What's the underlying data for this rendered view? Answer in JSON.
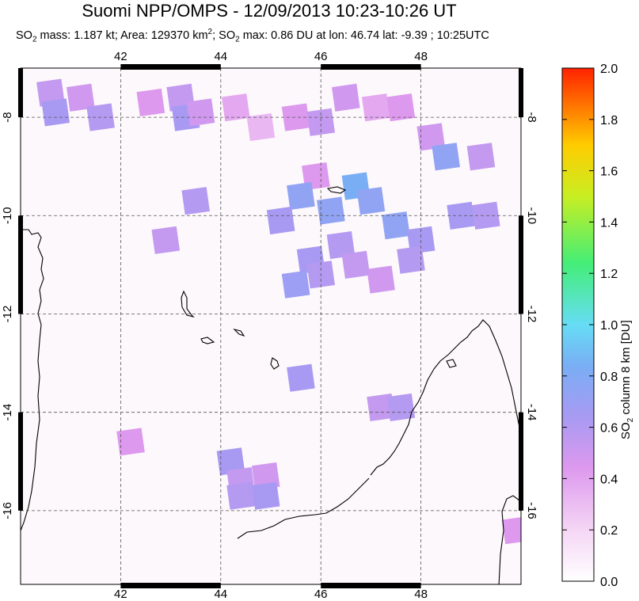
{
  "title": "Suomi NPP/OMPS - 12/09/2013 10:23-10:26 UT",
  "subtitle": {
    "so2_mass_prefix": "SO",
    "so2_mass_sub": "2",
    "so2_mass_text": " mass: 1.187 kt; Area: 129370 km",
    "area_sup": "2",
    "max_prefix": "; SO",
    "max_sub": "2",
    "max_text": " max: 0.86 DU at lon: 46.74 lat: -9.39 ; 10:25UTC"
  },
  "map": {
    "lon_ticks": [
      "42",
      "44",
      "46",
      "48"
    ],
    "lat_ticks": [
      "-8",
      "-10",
      "-12",
      "-14",
      "-16"
    ],
    "lon_range": [
      40.0,
      50.0
    ],
    "lat_range": [
      -7.0,
      -17.5
    ],
    "grid": "dashed"
  },
  "colorbar": {
    "title_prefix": "SO",
    "title_sub": "2",
    "title_text": " column 8 km [DU]",
    "ticks": [
      "2.0",
      "1.8",
      "1.6",
      "1.4",
      "1.2",
      "1.0",
      "0.8",
      "0.6",
      "0.4",
      "0.2",
      "0.0"
    ],
    "range": [
      0.0,
      2.0
    ],
    "colors": [
      "#ffffff",
      "#f0c0f0",
      "#9f9ff0",
      "#66ccf7",
      "#55ff88",
      "#aaee33",
      "#ffee00",
      "#ff9900",
      "#ff2200"
    ]
  },
  "chart_data": {
    "type": "heatmap",
    "title": "Suomi NPP/OMPS - 12/09/2013 10:23-10:26 UT",
    "value_label": "SO2 column 8 km [DU]",
    "cells": [
      {
        "lon": 40.6,
        "lat": -7.5,
        "v": 0.5
      },
      {
        "lon": 41.2,
        "lat": -7.6,
        "v": 0.45
      },
      {
        "lon": 40.7,
        "lat": -7.9,
        "v": 0.6
      },
      {
        "lon": 41.6,
        "lat": -8.0,
        "v": 0.55
      },
      {
        "lon": 42.6,
        "lat": -7.7,
        "v": 0.4
      },
      {
        "lon": 43.2,
        "lat": -7.6,
        "v": 0.5
      },
      {
        "lon": 43.3,
        "lat": -8.0,
        "v": 0.6
      },
      {
        "lon": 43.6,
        "lat": -7.9,
        "v": 0.45
      },
      {
        "lon": 44.3,
        "lat": -7.8,
        "v": 0.35
      },
      {
        "lon": 44.8,
        "lat": -8.2,
        "v": 0.3
      },
      {
        "lon": 45.5,
        "lat": -8.0,
        "v": 0.4
      },
      {
        "lon": 46.0,
        "lat": -8.1,
        "v": 0.5
      },
      {
        "lon": 46.5,
        "lat": -7.6,
        "v": 0.45
      },
      {
        "lon": 47.1,
        "lat": -7.8,
        "v": 0.35
      },
      {
        "lon": 47.6,
        "lat": -7.8,
        "v": 0.4
      },
      {
        "lon": 48.2,
        "lat": -8.4,
        "v": 0.45
      },
      {
        "lon": 48.5,
        "lat": -8.8,
        "v": 0.7
      },
      {
        "lon": 49.2,
        "lat": -8.8,
        "v": 0.5
      },
      {
        "lon": 45.9,
        "lat": -9.2,
        "v": 0.4
      },
      {
        "lon": 45.6,
        "lat": -9.6,
        "v": 0.7
      },
      {
        "lon": 46.7,
        "lat": -9.4,
        "v": 0.8
      },
      {
        "lon": 47.0,
        "lat": -9.7,
        "v": 0.7
      },
      {
        "lon": 46.2,
        "lat": -9.9,
        "v": 0.7
      },
      {
        "lon": 45.2,
        "lat": -10.1,
        "v": 0.6
      },
      {
        "lon": 47.5,
        "lat": -10.2,
        "v": 0.7
      },
      {
        "lon": 48.0,
        "lat": -10.5,
        "v": 0.6
      },
      {
        "lon": 48.8,
        "lat": -10.0,
        "v": 0.6
      },
      {
        "lon": 49.3,
        "lat": -10.0,
        "v": 0.55
      },
      {
        "lon": 46.4,
        "lat": -10.6,
        "v": 0.55
      },
      {
        "lon": 45.8,
        "lat": -10.9,
        "v": 0.6
      },
      {
        "lon": 45.5,
        "lat": -11.4,
        "v": 0.65
      },
      {
        "lon": 46.0,
        "lat": -11.2,
        "v": 0.55
      },
      {
        "lon": 46.7,
        "lat": -11.0,
        "v": 0.5
      },
      {
        "lon": 47.2,
        "lat": -11.3,
        "v": 0.45
      },
      {
        "lon": 47.8,
        "lat": -10.9,
        "v": 0.55
      },
      {
        "lon": 43.5,
        "lat": -9.7,
        "v": 0.55
      },
      {
        "lon": 42.9,
        "lat": -10.5,
        "v": 0.5
      },
      {
        "lon": 45.6,
        "lat": -13.3,
        "v": 0.6
      },
      {
        "lon": 47.2,
        "lat": -13.9,
        "v": 0.5
      },
      {
        "lon": 47.6,
        "lat": -13.9,
        "v": 0.55
      },
      {
        "lon": 44.2,
        "lat": -15.0,
        "v": 0.6
      },
      {
        "lon": 44.4,
        "lat": -15.4,
        "v": 0.5
      },
      {
        "lon": 44.9,
        "lat": -15.3,
        "v": 0.45
      },
      {
        "lon": 44.4,
        "lat": -15.7,
        "v": 0.55
      },
      {
        "lon": 44.9,
        "lat": -15.7,
        "v": 0.6
      },
      {
        "lon": 42.2,
        "lat": -14.6,
        "v": 0.4
      },
      {
        "lon": 49.9,
        "lat": -16.4,
        "v": 0.4
      }
    ],
    "max": {
      "value": 0.86,
      "lon": 46.74,
      "lat": -9.39
    }
  }
}
